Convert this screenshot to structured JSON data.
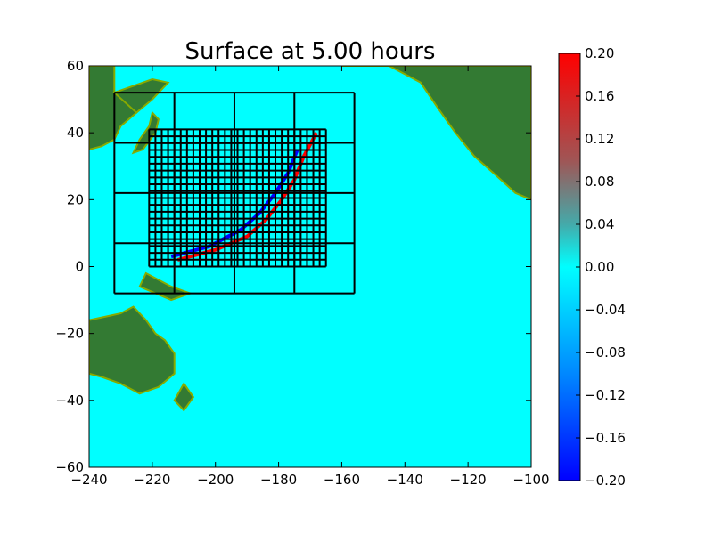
{
  "chart_data": {
    "type": "heatmap",
    "title": "Surface at 5.00 hours",
    "xlabel": "",
    "ylabel": "",
    "xlim": [
      -240,
      -100
    ],
    "ylim": [
      -60,
      60
    ],
    "x_ticks": [
      -240,
      -220,
      -200,
      -180,
      -160,
      -140,
      -120,
      -100
    ],
    "x_tick_labels": [
      "−240",
      "−220",
      "−200",
      "−180",
      "−160",
      "−140",
      "−120",
      "−100"
    ],
    "y_ticks": [
      60,
      40,
      20,
      0,
      -20,
      -40,
      -60
    ],
    "y_tick_labels": [
      "60",
      "40",
      "20",
      "0",
      "−20",
      "−40",
      "−60"
    ],
    "colorbar": {
      "range": [
        -0.2,
        0.2
      ],
      "ticks": [
        0.2,
        0.16,
        0.12,
        0.08,
        0.04,
        0.0,
        -0.04,
        -0.08,
        -0.12,
        -0.16,
        -0.2
      ],
      "tick_labels": [
        "0.20",
        "0.16",
        "0.12",
        "0.08",
        "0.04",
        "0.00",
        "−0.04",
        "−0.08",
        "−0.12",
        "−0.16",
        "−0.20"
      ],
      "colormap": [
        "#0000ff",
        "#00ffff",
        "#888888",
        "#ff0000"
      ]
    },
    "background_color": "#00ffff",
    "land_color": "#337a33",
    "land_edge_color": "#88aa00",
    "land_regions": [
      {
        "name": "asia",
        "polygon": [
          [
            -240,
            60
          ],
          [
            -232,
            60
          ],
          [
            -232,
            52
          ],
          [
            -228,
            50
          ],
          [
            -225,
            46
          ],
          [
            -230,
            42
          ],
          [
            -232,
            38
          ],
          [
            -236,
            36
          ],
          [
            -240,
            35
          ]
        ]
      },
      {
        "name": "kamchatka",
        "polygon": [
          [
            -232,
            52
          ],
          [
            -220,
            56
          ],
          [
            -215,
            55
          ],
          [
            -220,
            50
          ],
          [
            -225,
            46
          ]
        ]
      },
      {
        "name": "japan",
        "polygon": [
          [
            -220,
            46
          ],
          [
            -218,
            44
          ],
          [
            -219,
            40
          ],
          [
            -223,
            35
          ],
          [
            -226,
            34
          ],
          [
            -224,
            38
          ],
          [
            -221,
            42
          ]
        ]
      },
      {
        "name": "north-america",
        "polygon": [
          [
            -160,
            60
          ],
          [
            -120,
            60
          ],
          [
            -100,
            60
          ],
          [
            -100,
            20
          ],
          [
            -105,
            22
          ],
          [
            -112,
            28
          ],
          [
            -118,
            33
          ],
          [
            -124,
            40
          ],
          [
            -130,
            48
          ],
          [
            -135,
            55
          ],
          [
            -145,
            60
          ]
        ]
      },
      {
        "name": "papua",
        "polygon": [
          [
            -222,
            -2
          ],
          [
            -214,
            -6
          ],
          [
            -208,
            -8
          ],
          [
            -214,
            -10
          ],
          [
            -224,
            -6
          ]
        ]
      },
      {
        "name": "australia",
        "polygon": [
          [
            -240,
            -16
          ],
          [
            -230,
            -14
          ],
          [
            -226,
            -12
          ],
          [
            -222,
            -16
          ],
          [
            -219,
            -20
          ],
          [
            -216,
            -22
          ],
          [
            -213,
            -26
          ],
          [
            -213,
            -32
          ],
          [
            -218,
            -36
          ],
          [
            -224,
            -38
          ],
          [
            -230,
            -35
          ],
          [
            -236,
            -33
          ],
          [
            -240,
            -32
          ]
        ]
      },
      {
        "name": "new-zealand",
        "polygon": [
          [
            -210,
            -35
          ],
          [
            -207,
            -39
          ],
          [
            -210,
            -43
          ],
          [
            -213,
            -40
          ]
        ]
      }
    ],
    "amr_level1_box": {
      "x": [
        -232,
        -156
      ],
      "y": [
        -8,
        52
      ],
      "nx": 4,
      "ny": 4
    },
    "amr_level2_box": {
      "x": [
        -221,
        -165
      ],
      "y": [
        0,
        41
      ],
      "nx": 28,
      "ny": 20
    },
    "wave_front": {
      "red": [
        [
          -212,
          2
        ],
        [
          -200,
          5
        ],
        [
          -190,
          9
        ],
        [
          -184,
          14
        ],
        [
          -179,
          20
        ],
        [
          -175,
          26
        ],
        [
          -172,
          33
        ],
        [
          -168,
          40
        ]
      ],
      "blue": [
        [
          -214,
          3
        ],
        [
          -202,
          6
        ],
        [
          -192,
          11
        ],
        [
          -186,
          16
        ],
        [
          -181,
          22
        ],
        [
          -177,
          28
        ],
        [
          -174,
          35
        ]
      ]
    }
  }
}
